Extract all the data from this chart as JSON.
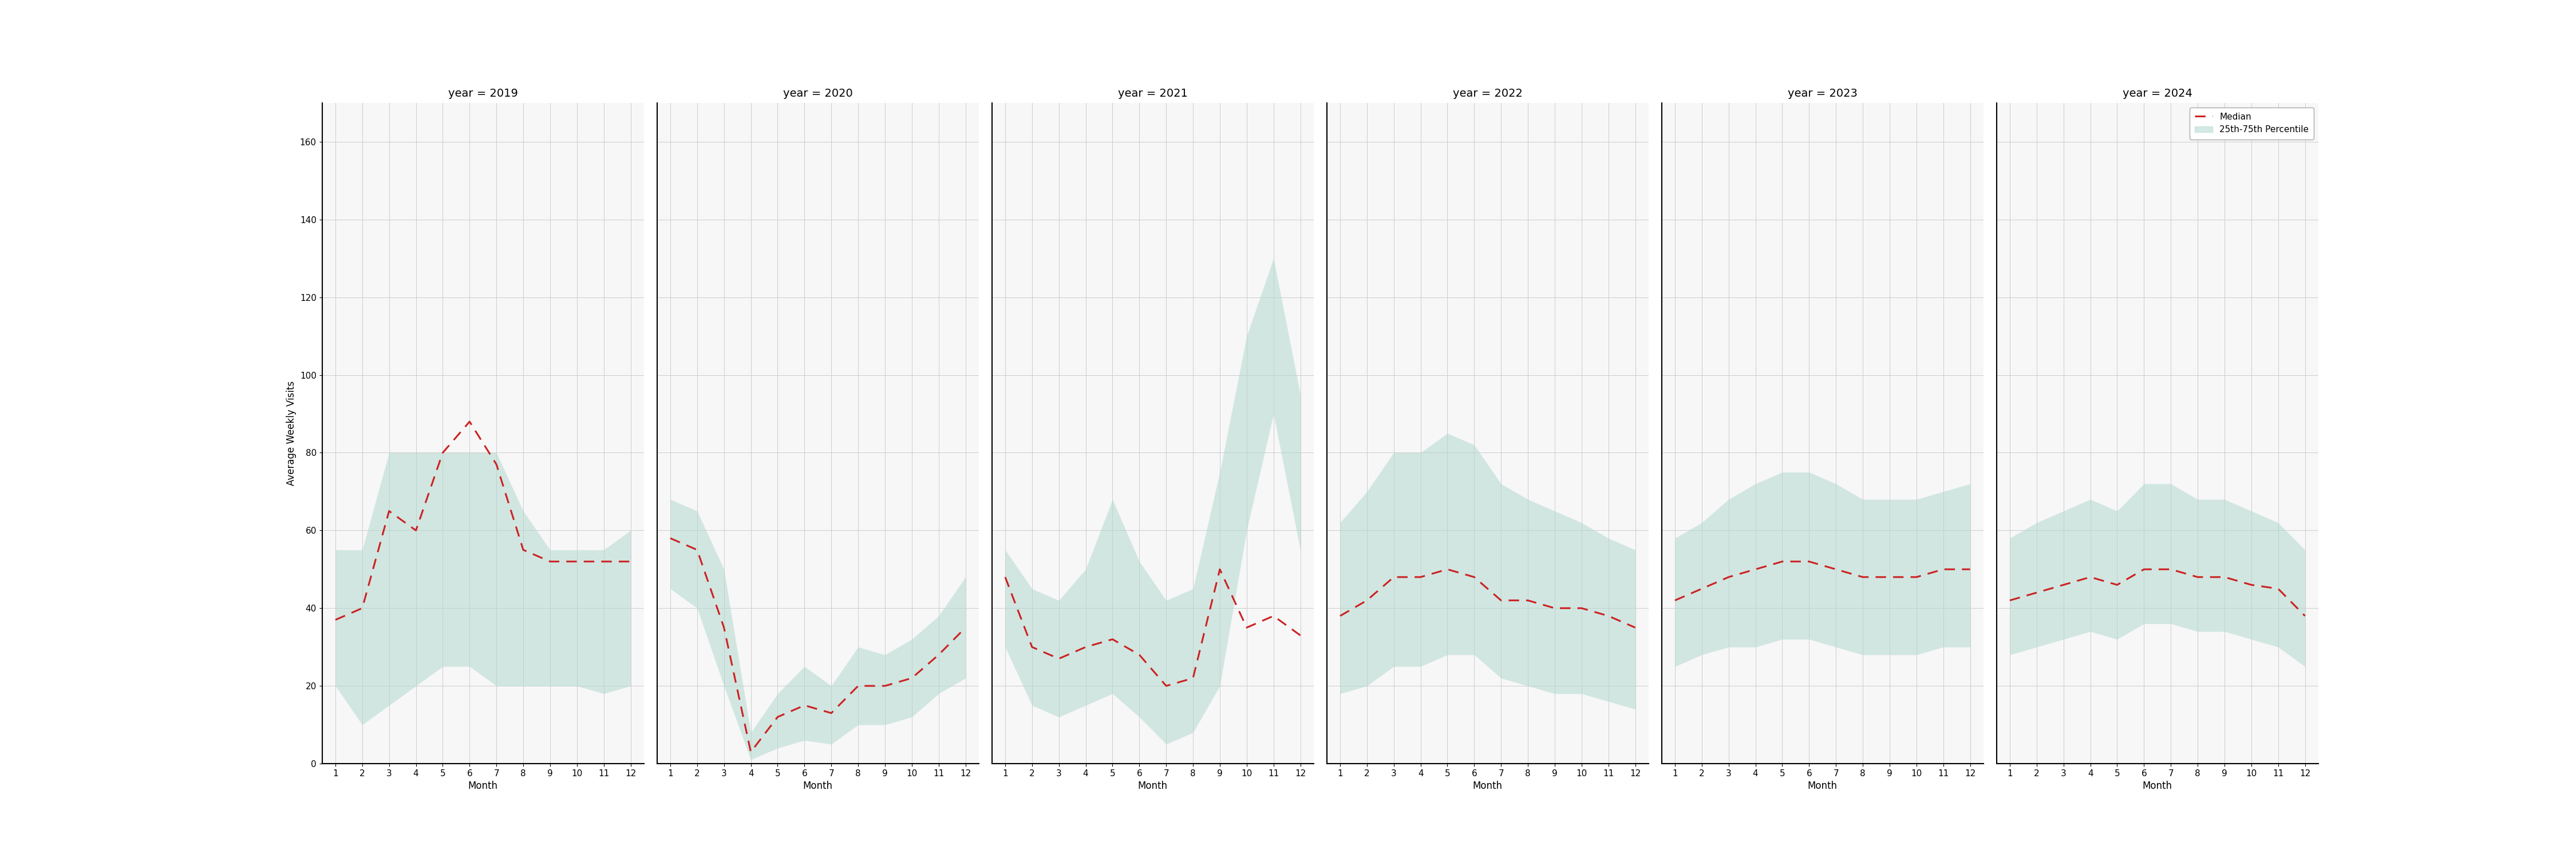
{
  "years": [
    2019,
    2020,
    2021,
    2022,
    2023,
    2024
  ],
  "months": [
    1,
    2,
    3,
    4,
    5,
    6,
    7,
    8,
    9,
    10,
    11,
    12
  ],
  "median": {
    "2019": [
      37,
      40,
      65,
      60,
      80,
      88,
      77,
      55,
      52,
      52,
      52,
      52
    ],
    "2020": [
      58,
      55,
      35,
      3,
      12,
      15,
      13,
      20,
      20,
      22,
      28,
      35
    ],
    "2021": [
      48,
      30,
      27,
      30,
      32,
      28,
      20,
      22,
      50,
      35,
      38,
      33
    ],
    "2022": [
      38,
      42,
      48,
      48,
      50,
      48,
      42,
      42,
      40,
      40,
      38,
      35
    ],
    "2023": [
      42,
      45,
      48,
      50,
      52,
      52,
      50,
      48,
      48,
      48,
      50,
      50
    ],
    "2024": [
      42,
      44,
      46,
      48,
      46,
      50,
      50,
      48,
      48,
      46,
      45,
      38
    ]
  },
  "p25": {
    "2019": [
      20,
      10,
      15,
      20,
      25,
      25,
      20,
      20,
      20,
      20,
      18,
      20
    ],
    "2020": [
      45,
      40,
      20,
      1,
      4,
      6,
      5,
      10,
      10,
      12,
      18,
      22
    ],
    "2021": [
      30,
      15,
      12,
      15,
      18,
      12,
      5,
      8,
      20,
      60,
      90,
      55
    ],
    "2022": [
      18,
      20,
      25,
      25,
      28,
      28,
      22,
      20,
      18,
      18,
      16,
      14
    ],
    "2023": [
      25,
      28,
      30,
      30,
      32,
      32,
      30,
      28,
      28,
      28,
      30,
      30
    ],
    "2024": [
      28,
      30,
      32,
      34,
      32,
      36,
      36,
      34,
      34,
      32,
      30,
      25
    ]
  },
  "p75": {
    "2019": [
      55,
      55,
      80,
      80,
      80,
      80,
      80,
      65,
      55,
      55,
      55,
      60
    ],
    "2020": [
      68,
      65,
      50,
      8,
      18,
      25,
      20,
      30,
      28,
      32,
      38,
      48
    ],
    "2021": [
      55,
      45,
      42,
      50,
      68,
      52,
      42,
      45,
      75,
      110,
      130,
      95
    ],
    "2022": [
      62,
      70,
      80,
      80,
      85,
      82,
      72,
      68,
      65,
      62,
      58,
      55
    ],
    "2023": [
      58,
      62,
      68,
      72,
      75,
      75,
      72,
      68,
      68,
      68,
      70,
      72
    ],
    "2024": [
      58,
      62,
      65,
      68,
      65,
      72,
      72,
      68,
      68,
      65,
      62,
      55
    ]
  },
  "ylim": [
    0,
    170
  ],
  "yticks": [
    0,
    20,
    40,
    60,
    80,
    100,
    120,
    140,
    160
  ],
  "fill_color": "#b2d8d0",
  "fill_alpha": 0.55,
  "line_color": "#cc2222",
  "line_style": "--",
  "line_width": 2.2,
  "bg_color": "#f7f7f7",
  "grid_color": "#cccccc",
  "ylabel": "Average Weekly Visits",
  "xlabel": "Month",
  "legend_median": "Median",
  "legend_fill": "25th-75th Percentile"
}
